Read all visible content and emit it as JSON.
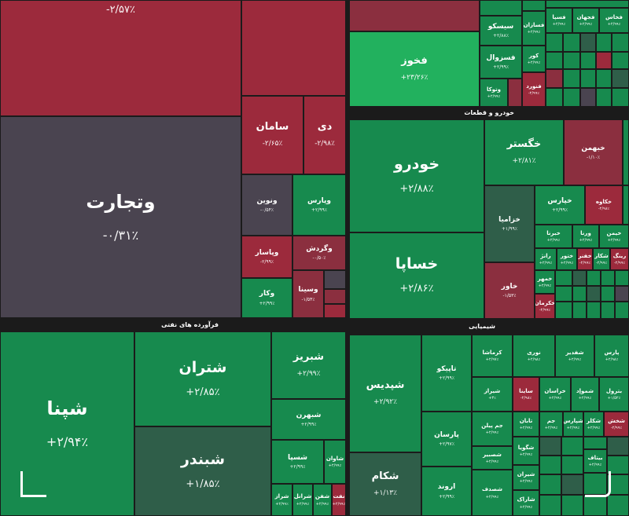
{
  "colors": {
    "bg": "#1b1b1b",
    "strong_red": "#9c2a3c",
    "red": "#8b2f3f",
    "neutral": "#4a4450",
    "green": "#178a4e",
    "bright_green": "#22b15e",
    "dark_green": "#2f5e49"
  },
  "sections": {
    "autos": "خودرو و قطعات",
    "refinery": "فرآورده های نفتی",
    "chemicals": "شیمیایی"
  },
  "tiles": {
    "t_top": {
      "name": "",
      "chg": "-۲/۵۷٪"
    },
    "vtejarat": {
      "name": "وتجارت",
      "chg": "-۰/۳۱٪"
    },
    "saman": {
      "name": "سامان",
      "chg": "-۲/۶۵٪"
    },
    "di": {
      "name": "دی",
      "chg": "-۲/۹۸٪"
    },
    "vnovin": {
      "name": "ونوین",
      "chg": "-۰/۵۴٪"
    },
    "vpars": {
      "name": "وپارس",
      "chg": "+۲/۹۹٪"
    },
    "vpasar": {
      "name": "وپاسار",
      "chg": "-۲/۹۹٪"
    },
    "vgardesh": {
      "name": "وگردش",
      "chg": "-۰/۵۰٪"
    },
    "vsina": {
      "name": "وسینا",
      "chg": "-۱/۵۴٪"
    },
    "vkar": {
      "name": "وکار",
      "chg": "+۲/۹۹٪"
    },
    "fkhouz": {
      "name": "فخوز",
      "chg": "+۲۳/۲۶٪"
    },
    "sisko": {
      "name": "سیسکو",
      "chg": "+۲/۸۸٪"
    },
    "fsazan": {
      "name": "فسازان",
      "chg": "+۲/۹۹٪"
    },
    "fkhas": {
      "name": "فخاس",
      "chg": "+۲/۹۹٪"
    },
    "fjahan": {
      "name": "فجهان",
      "chg": "+۲/۹۹٪"
    },
    "fsepa": {
      "name": "فسپا",
      "chg": "+۲/۹۹٪"
    },
    "fsazol": {
      "name": "فسزوال",
      "chg": "+۲/۹۹٪"
    },
    "kvor": {
      "name": "کور",
      "chg": "+۲/۹۹٪"
    },
    "fnoord": {
      "name": "فنورد",
      "chg": "-۲/۹۹٪"
    },
    "vtoka": {
      "name": "وتوکا",
      "chg": "+۲/۹۹٪"
    },
    "khodro": {
      "name": "خودرو",
      "chg": "+۲/۸۸٪"
    },
    "khsapa": {
      "name": "خساپا",
      "chg": "+۲/۸۶٪"
    },
    "khgostar": {
      "name": "خگستر",
      "chg": "+۲/۸۱٪"
    },
    "kheihem": {
      "name": "خبهمن",
      "chg": "-۱/۱۰٪"
    },
    "khzamia": {
      "name": "خزامیا",
      "chg": "+۱/۹۹٪"
    },
    "khavar": {
      "name": "خاور",
      "chg": "-۱/۵۳٪"
    },
    "khpars": {
      "name": "خپارس",
      "chg": "+۲/۹۹٪"
    },
    "khkaveh": {
      "name": "خکاوه",
      "chg": "-۲/۹۸٪"
    },
    "khbara": {
      "name": "خبرنا",
      "chg": "+۲/۹۹٪"
    },
    "vrena": {
      "name": "ورنا",
      "chg": "+۲/۹۹٪"
    },
    "kheimen": {
      "name": "خیمن",
      "chg": "+۲/۹۹٪"
    },
    "ranj": {
      "name": "رانژ",
      "chg": "+۲/۹۹٪"
    },
    "khtoor": {
      "name": "ختور",
      "chg": "+۲/۹۹٪"
    },
    "khfanar": {
      "name": "خفنر",
      "chg": "-۲/۹۹٪"
    },
    "shakar": {
      "name": "شکار",
      "chg": "-۲/۹۹٪"
    },
    "rink": {
      "name": "رینگ",
      "chg": "-۲/۹۹٪"
    },
    "khmohar": {
      "name": "خمهر",
      "chg": "+۲/۹۹٪"
    },
    "khkarman": {
      "name": "خکرمان",
      "chg": "-۲/۹۹٪"
    },
    "shepna": {
      "name": "شپنا",
      "chg": "+۲/۹۴٪"
    },
    "shetran": {
      "name": "شتران",
      "chg": "+۲/۸۵٪"
    },
    "shbandar": {
      "name": "شبندر",
      "chg": "+۱/۸۵٪"
    },
    "shbriz": {
      "name": "شبریز",
      "chg": "+۲/۹۹٪"
    },
    "shebahr": {
      "name": "شبهرن",
      "chg": "+۲/۹۹٪"
    },
    "shsepa": {
      "name": "شسپا",
      "chg": "+۲/۹۹٪"
    },
    "shavan": {
      "name": "شاوان",
      "chg": "+۲/۹۹٪"
    },
    "shraz": {
      "name": "شراز",
      "chg": "+۲/۹۹٪"
    },
    "shranol": {
      "name": "شرانل",
      "chg": "+۲/۹۹٪"
    },
    "shfan": {
      "name": "شفن",
      "chg": "+۲/۹۹٪"
    },
    "nafta": {
      "name": "نفت",
      "chg": "+۲/۹۹٪"
    },
    "shpdis": {
      "name": "شپدیس",
      "chg": "+۲/۹۲٪"
    },
    "shakam": {
      "name": "شکام",
      "chg": "+۱/۱۳٪"
    },
    "tapiko": {
      "name": "تاپیکو",
      "chg": "+۲/۹۹٪"
    },
    "parsan": {
      "name": "پارسان",
      "chg": "+۲/۹۷٪"
    },
    "arvand": {
      "name": "اروند",
      "chg": "+۲/۹۹٪"
    },
    "kermasha": {
      "name": "کرماشا",
      "chg": "+۲/۹۷٪"
    },
    "noori": {
      "name": "نوری",
      "chg": "+۲/۹۸٪"
    },
    "shadir": {
      "name": "شفدیر",
      "chg": "+۲/۹۹٪"
    },
    "pars": {
      "name": "پارس",
      "chg": "+۲/۹۸٪"
    },
    "shiraz": {
      "name": "شیراز",
      "chg": "+۳٪"
    },
    "sabina": {
      "name": "ساینا",
      "chg": "-۲/۹۸٪"
    },
    "khorasan": {
      "name": "خراسان",
      "chg": "+۲/۹۹٪"
    },
    "shemvad": {
      "name": "شموإد",
      "chg": "+۲/۹۹٪"
    },
    "batrol": {
      "name": "بترول",
      "chg": "+۱/۵۲٪"
    },
    "jampilan": {
      "name": "جم پیلن",
      "chg": "+۲/۹۹٪"
    },
    "shgooya": {
      "name": "شگویا",
      "chg": "+۲/۹۹٪"
    },
    "shsabir": {
      "name": "شصبیر",
      "chg": "+۲/۹۹٪"
    },
    "shsdaf": {
      "name": "شصدف",
      "chg": "+۲/۹۹٪"
    },
    "shiran": {
      "name": "شیران",
      "chg": "+۲/۹۹٪"
    },
    "shapak": {
      "name": "شاراک",
      "chg": "+۲/۹۹٪"
    },
    "taban": {
      "name": "تابان",
      "chg": "+۲/۹۹٪"
    },
    "jam": {
      "name": "جم",
      "chg": "+۲/۹۹٪"
    },
    "shapars": {
      "name": "شپارس",
      "chg": "+۲/۹۹٪"
    },
    "shkalar": {
      "name": "شکلر",
      "chg": "+۲/۹۹٪"
    },
    "shakhsh": {
      "name": "شخش",
      "chg": "-۲/۹۹٪"
    },
    "bitaf": {
      "name": "بیتاف",
      "chg": "+۲/۹۹٪"
    }
  }
}
